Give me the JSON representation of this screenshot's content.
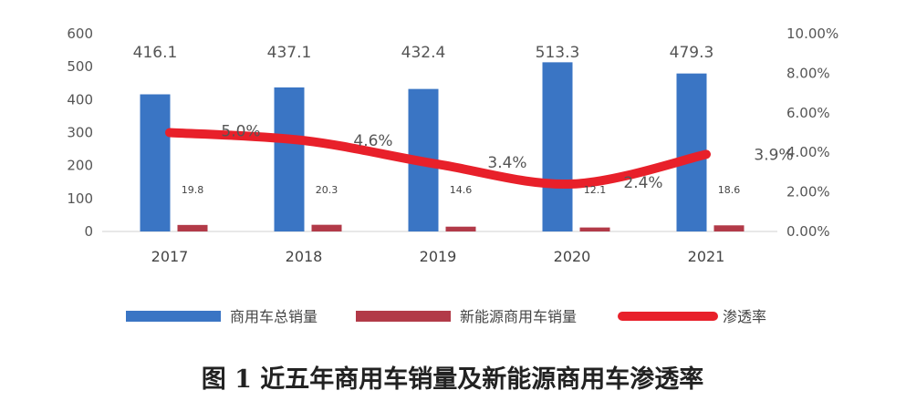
{
  "chart_data": {
    "type": "bar",
    "categories": [
      "2017",
      "2018",
      "2019",
      "2020",
      "2021"
    ],
    "series": [
      {
        "name": "商用车总销量",
        "kind": "bar",
        "axis": "left",
        "color": "#3a75c4",
        "values": [
          416.1,
          437.1,
          432.4,
          513.3,
          479.3
        ],
        "labels": [
          "416.1",
          "437.1",
          "432.4",
          "513.3",
          "479.3"
        ]
      },
      {
        "name": "新能源商用车销量",
        "kind": "bar",
        "axis": "left",
        "color": "#b23a48",
        "values": [
          19.8,
          20.3,
          14.6,
          12.1,
          18.6
        ],
        "labels": [
          "19.8",
          "20.3",
          "14.6",
          "12.1",
          "18.6"
        ]
      },
      {
        "name": "渗透率",
        "kind": "line",
        "axis": "right",
        "color": "#e8202a",
        "values": [
          5.0,
          4.6,
          3.4,
          2.4,
          3.9
        ],
        "labels": [
          "5.0%",
          "4.6%",
          "3.4%",
          "2.4%",
          "3.9%"
        ]
      }
    ],
    "y_left": {
      "min": 0,
      "max": 600,
      "ticks": [
        "0",
        "100",
        "200",
        "300",
        "400",
        "500",
        "600"
      ]
    },
    "y_right": {
      "min": 0,
      "max": 10,
      "ticks": [
        "0.00%",
        "2.00%",
        "4.00%",
        "6.00%",
        "8.00%",
        "10.00%"
      ]
    },
    "grid": false,
    "legend": "bottom"
  },
  "caption": "图 1  近五年商用车销量及新能源商用车渗透率"
}
